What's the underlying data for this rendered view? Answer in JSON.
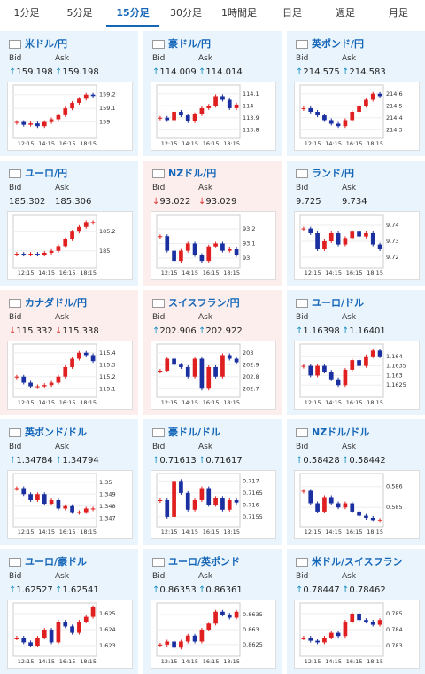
{
  "tabs": [
    "1分足",
    "5分足",
    "15分足",
    "30分足",
    "1時間足",
    "日足",
    "週足",
    "月足"
  ],
  "labels": {
    "bid": "Bid",
    "ask": "Ask"
  },
  "x_labels": [
    "12:15",
    "14:15",
    "16:15",
    "18:15"
  ],
  "cards": [
    {
      "pair": "米ドル/円",
      "bid_arrow": "↑",
      "bid": "159.198",
      "ask_arrow": "↑",
      "ask": "159.198",
      "change_color": "#1a8fbf",
      "ylim": [
        158.9,
        159.25
      ],
      "yticks": [
        159,
        159.1,
        159.2
      ],
      "values": [
        159.0,
        158.98,
        158.99,
        158.97,
        159.0,
        159.02,
        159.05,
        159.1,
        159.14,
        159.17,
        159.2,
        159.19
      ]
    },
    {
      "pair": "豪ドル/円",
      "bid_arrow": "↑",
      "bid": "114.009",
      "ask_arrow": "↑",
      "ask": "114.014",
      "change_color": "#1a8fbf",
      "ylim": [
        113.75,
        114.15
      ],
      "yticks": [
        113.8,
        113.9,
        114,
        114.1
      ],
      "values": [
        113.9,
        113.88,
        113.95,
        113.92,
        113.87,
        113.93,
        113.98,
        114.0,
        114.08,
        114.05,
        113.98,
        114.01
      ]
    },
    {
      "pair": "英ポンド/円",
      "bid_arrow": "↑",
      "bid": "214.575",
      "ask_arrow": "↑",
      "ask": "214.583",
      "change_color": "#1a8fbf",
      "ylim": [
        214.25,
        214.65
      ],
      "yticks": [
        214.3,
        214.4,
        214.5,
        214.6
      ],
      "values": [
        214.48,
        214.45,
        214.42,
        214.38,
        214.35,
        214.33,
        214.38,
        214.45,
        214.5,
        214.55,
        214.6,
        214.58
      ]
    },
    {
      "pair": "ユーロ/円",
      "bid": "185.302",
      "ask": "185.306",
      "ylim": [
        184.85,
        185.35
      ],
      "yticks": [
        185,
        185.2
      ],
      "values": [
        184.97,
        184.96,
        184.97,
        184.96,
        184.98,
        185.0,
        185.05,
        185.12,
        185.2,
        185.25,
        185.3,
        185.3
      ]
    },
    {
      "pair": "NZドル/円",
      "bid_arrow": "↓",
      "bid": "93.022",
      "ask_arrow": "↓",
      "ask": "93.029",
      "change_color": "#d33",
      "highlight": true,
      "ylim": [
        92.95,
        93.28
      ],
      "yticks": [
        93,
        93.1,
        93.2
      ],
      "values": [
        93.15,
        93.05,
        92.98,
        93.05,
        93.1,
        93.02,
        92.98,
        93.08,
        93.1,
        93.05,
        93.06,
        93.02
      ]
    },
    {
      "pair": "ランド/円",
      "bid": "9.725",
      "ask": "9.734",
      "ylim": [
        9.715,
        9.745
      ],
      "yticks": [
        9.72,
        9.73,
        9.74
      ],
      "values": [
        9.738,
        9.735,
        9.725,
        9.73,
        9.735,
        9.728,
        9.732,
        9.736,
        9.733,
        9.735,
        9.728,
        9.725
      ]
    },
    {
      "pair": "カナダドル/円",
      "bid_arrow": "↓",
      "bid": "115.332",
      "ask_arrow": "↓",
      "ask": "115.338",
      "change_color": "#d33",
      "highlight": true,
      "ylim": [
        115.05,
        115.45
      ],
      "yticks": [
        115.1,
        115.2,
        115.3,
        115.4
      ],
      "values": [
        115.2,
        115.15,
        115.12,
        115.12,
        115.13,
        115.15,
        115.2,
        115.28,
        115.35,
        115.4,
        115.38,
        115.33
      ]
    },
    {
      "pair": "スイスフラン/円",
      "bid_arrow": "↑",
      "bid": "202.906",
      "ask_arrow": "↑",
      "ask": "202.922",
      "change_color": "#1a8fbf",
      "highlight": true,
      "ylim": [
        202.65,
        203.05
      ],
      "yticks": [
        202.7,
        202.8,
        202.9,
        203
      ],
      "values": [
        202.85,
        202.95,
        202.9,
        202.88,
        202.8,
        202.95,
        202.7,
        202.88,
        202.8,
        202.98,
        202.95,
        202.92
      ]
    },
    {
      "pair": "ユーロ/ドル",
      "bid_arrow": "↑",
      "bid": "1.16398",
      "ask_arrow": "↑",
      "ask": "1.16401",
      "change_color": "#1a8fbf",
      "ylim": [
        1.162,
        1.1645
      ],
      "yticks": [
        1.1625,
        1.163,
        1.1635,
        1.164
      ],
      "values": [
        1.1635,
        1.163,
        1.1635,
        1.1632,
        1.1628,
        1.1625,
        1.1633,
        1.1638,
        1.1635,
        1.164,
        1.1643,
        1.164
      ]
    },
    {
      "pair": "英ポンド/ドル",
      "bid_arrow": "↑",
      "bid": "1.34784",
      "ask_arrow": "↑",
      "ask": "1.34794",
      "change_color": "#1a8fbf",
      "ylim": [
        1.3465,
        1.3505
      ],
      "yticks": [
        1.347,
        1.348,
        1.349,
        1.35
      ],
      "values": [
        1.3495,
        1.349,
        1.3485,
        1.349,
        1.3482,
        1.3485,
        1.3478,
        1.348,
        1.3475,
        1.3475,
        1.3478,
        1.3478
      ]
    },
    {
      "pair": "豪ドル/ドル",
      "bid_arrow": "↑",
      "bid": "0.71613",
      "ask_arrow": "↑",
      "ask": "0.71617",
      "change_color": "#1a8fbf",
      "ylim": [
        0.7152,
        0.7172
      ],
      "yticks": [
        0.7155,
        0.716,
        0.7165,
        0.717
      ],
      "values": [
        0.7162,
        0.7155,
        0.717,
        0.7165,
        0.7158,
        0.7162,
        0.7167,
        0.716,
        0.7163,
        0.7158,
        0.7162,
        0.7161
      ]
    },
    {
      "pair": "NZドル/ドル",
      "bid_arrow": "↑",
      "bid": "0.58428",
      "ask_arrow": "↑",
      "ask": "0.58442",
      "change_color": "#1a8fbf",
      "ylim": [
        0.5842,
        0.5865
      ],
      "yticks": [
        0.585,
        0.586
      ],
      "values": [
        0.5858,
        0.5852,
        0.5848,
        0.5855,
        0.5852,
        0.585,
        0.5852,
        0.5848,
        0.5846,
        0.5845,
        0.5844,
        0.5844
      ]
    },
    {
      "pair": "ユーロ/豪ドル",
      "bid_arrow": "↑",
      "bid": "1.62527",
      "ask_arrow": "↑",
      "ask": "1.62541",
      "change_color": "#1a8fbf",
      "ylim": [
        1.6225,
        1.6255
      ],
      "yticks": [
        1.623,
        1.624,
        1.625
      ],
      "values": [
        1.6235,
        1.6232,
        1.623,
        1.6235,
        1.624,
        1.6232,
        1.6245,
        1.6242,
        1.6238,
        1.6245,
        1.6248,
        1.6254
      ]
    },
    {
      "pair": "ユーロ/英ポンド",
      "bid_arrow": "↑",
      "bid": "0.86353",
      "ask_arrow": "↑",
      "ask": "0.86361",
      "change_color": "#1a8fbf",
      "ylim": [
        0.8622,
        0.8638
      ],
      "yticks": [
        0.8625,
        0.863,
        0.8635
      ],
      "values": [
        0.8625,
        0.8626,
        0.8624,
        0.8626,
        0.8628,
        0.8626,
        0.863,
        0.8632,
        0.8636,
        0.8635,
        0.8634,
        0.8636
      ]
    },
    {
      "pair": "米ドル/スイスフラン",
      "bid_arrow": "↑",
      "bid": "0.78447",
      "ask_arrow": "↑",
      "ask": "0.78462",
      "change_color": "#1a8fbf",
      "ylim": [
        0.7825,
        0.7855
      ],
      "yticks": [
        0.783,
        0.784,
        0.785
      ],
      "values": [
        0.7835,
        0.7833,
        0.7832,
        0.7835,
        0.7838,
        0.7836,
        0.7845,
        0.785,
        0.7846,
        0.7845,
        0.7843,
        0.7846
      ]
    }
  ]
}
